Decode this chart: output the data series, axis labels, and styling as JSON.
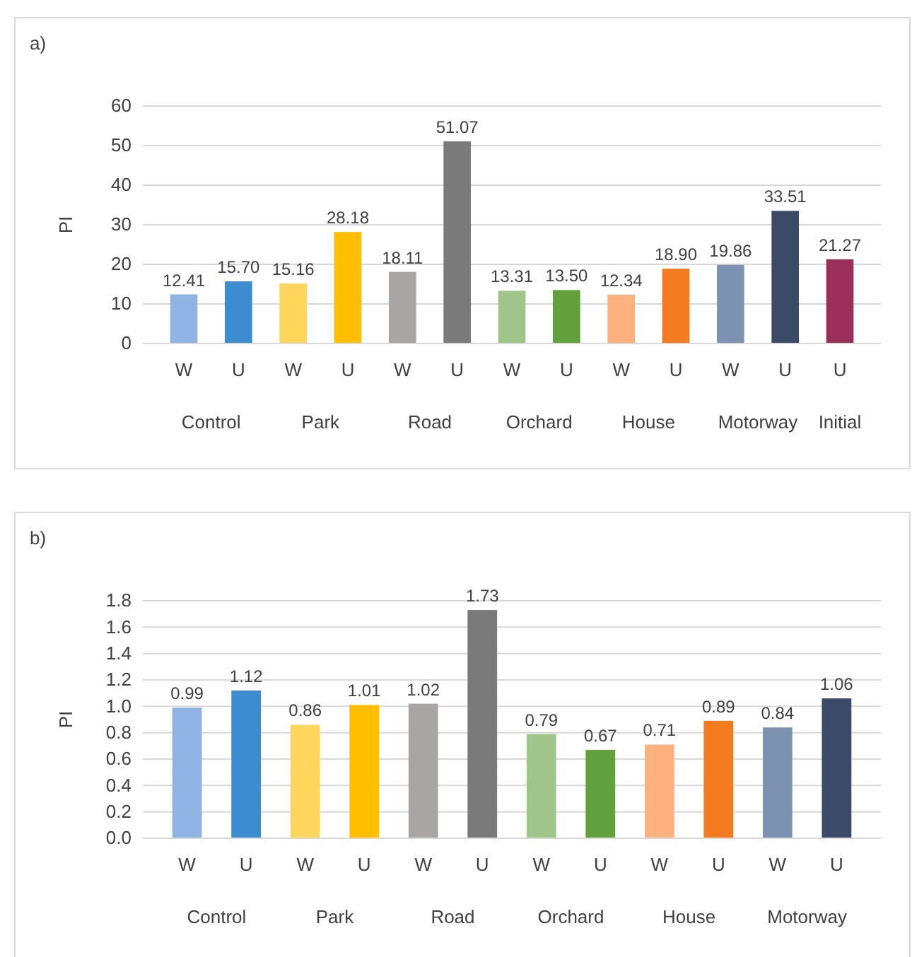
{
  "chart_data": [
    {
      "type": "bar",
      "title": "a)",
      "ylabel": "PI",
      "categories": [
        "W",
        "U",
        "W",
        "U",
        "W",
        "U",
        "W",
        "U",
        "W",
        "U",
        "W",
        "U",
        "U"
      ],
      "values": [
        12.41,
        15.7,
        15.16,
        28.18,
        18.11,
        51.07,
        13.31,
        13.5,
        12.34,
        18.9,
        19.86,
        33.51,
        21.27
      ],
      "colors": [
        "#8fb4e3",
        "#3d8bd0",
        "#ffd55c",
        "#ffbf00",
        "#a9a5a5",
        "#7a7a7a",
        "#9fc58a",
        "#62a03d",
        "#ffb07f",
        "#f47b20",
        "#7d92b0",
        "#3b4a67",
        "#9a2f5a"
      ],
      "ylim": [
        0,
        60
      ],
      "yticks": [
        0,
        10,
        20,
        30,
        40,
        50,
        60
      ],
      "grid": "y",
      "value_labels": [
        "12.41",
        "15.70",
        "15.16",
        "28.18",
        "18.11",
        "51.07",
        "13.31",
        "13.50",
        "12.34",
        "18.90",
        "19.86",
        "33.51",
        "21.27"
      ],
      "annotations": [
        "Control",
        "Park",
        "Road",
        "Orchard",
        "House",
        "Motorway",
        "Initial"
      ]
    },
    {
      "type": "bar",
      "title": "b)",
      "ylabel": "PI",
      "categories": [
        "W",
        "U",
        "W",
        "U",
        "W",
        "U",
        "W",
        "U",
        "W",
        "U",
        "W",
        "U"
      ],
      "values": [
        0.99,
        1.12,
        0.86,
        1.01,
        1.02,
        1.73,
        0.79,
        0.67,
        0.71,
        0.89,
        0.84,
        1.06
      ],
      "colors": [
        "#8fb4e3",
        "#3d8bd0",
        "#ffd55c",
        "#ffbf00",
        "#a9a5a5",
        "#7a7a7a",
        "#9fc58a",
        "#62a03d",
        "#ffb07f",
        "#f47b20",
        "#7d92b0",
        "#3b4a67"
      ],
      "ylim": [
        0,
        1.8
      ],
      "yticks": [
        {
          "value": 0,
          "label": "0.0"
        },
        {
          "value": 0.2,
          "label": "0.2"
        },
        {
          "value": 0.4,
          "label": "0.4"
        },
        {
          "value": 0.6,
          "label": "0.6"
        },
        {
          "value": 0.8,
          "label": "0.8"
        },
        {
          "value": 1,
          "label": "1.0"
        },
        {
          "value": 1.2,
          "label": "1.2"
        },
        {
          "value": 1.4,
          "label": "1.4"
        },
        {
          "value": 1.6,
          "label": "1.6"
        },
        {
          "value": 1.8,
          "label": "1.8"
        }
      ],
      "grid": "y",
      "value_labels": [
        "0.99",
        "1.12",
        "0.86",
        "1.01",
        "1.02",
        "1.73",
        "0.79",
        "0.67",
        "0.71",
        "0.89",
        "0.84",
        "1.06"
      ],
      "annotations": [
        "Control",
        "Park",
        "Road",
        "Orchard",
        "House",
        "Motorway"
      ]
    }
  ]
}
